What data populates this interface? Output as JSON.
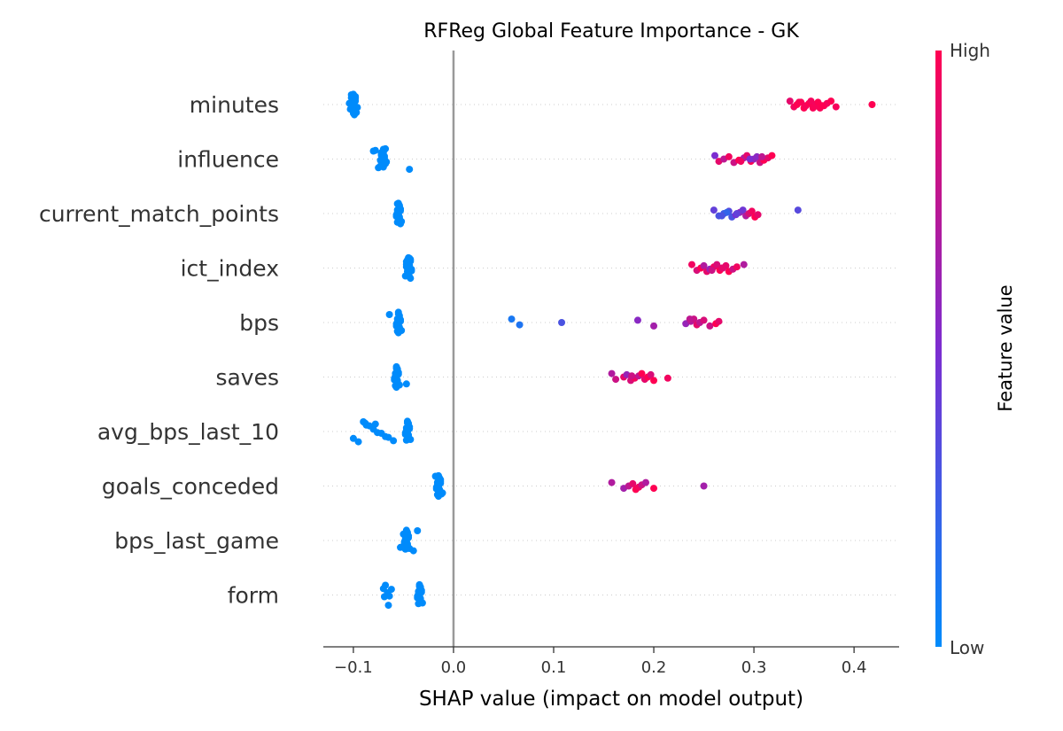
{
  "chart_data": {
    "type": "scatter",
    "title": "RFReg Global Feature Importance - GK",
    "xlabel": "SHAP value (impact on model output)",
    "xlim": [
      -0.13,
      0.445
    ],
    "xticks": [
      -0.1,
      0.0,
      0.1,
      0.2,
      0.3,
      0.4
    ],
    "xtick_labels": [
      "−0.1",
      "0.0",
      "0.1",
      "0.2",
      "0.3",
      "0.4"
    ],
    "features": [
      {
        "name": "minutes",
        "low": [
          -0.1,
          -0.102,
          -0.098,
          -0.101,
          -0.099,
          -0.1,
          -0.103,
          -0.097,
          -0.1,
          -0.101,
          -0.098,
          -0.099,
          -0.104,
          -0.1,
          -0.096,
          -0.101,
          -0.1,
          -0.099,
          -0.102,
          -0.098
        ],
        "high": [
          [
            0.336,
            0.9
          ],
          [
            0.34,
            0.95
          ],
          [
            0.343,
            1.0
          ],
          [
            0.347,
            0.98
          ],
          [
            0.35,
            1.0
          ],
          [
            0.352,
            0.97
          ],
          [
            0.355,
            1.0
          ],
          [
            0.357,
            0.96
          ],
          [
            0.36,
            1.0
          ],
          [
            0.362,
            0.95
          ],
          [
            0.364,
            1.0
          ],
          [
            0.366,
            0.98
          ],
          [
            0.37,
            1.0
          ],
          [
            0.373,
            0.96
          ],
          [
            0.377,
            1.0
          ],
          [
            0.382,
            0.97
          ],
          [
            0.418,
            1.0
          ],
          [
            0.345,
            0.99
          ],
          [
            0.359,
            0.98
          ],
          [
            0.368,
            1.0
          ]
        ]
      },
      {
        "name": "influence",
        "low": [
          -0.068,
          -0.07,
          -0.072,
          -0.069,
          -0.071,
          -0.073,
          -0.068,
          -0.07,
          -0.075,
          -0.078,
          -0.08,
          -0.072,
          -0.069,
          -0.071,
          -0.067,
          -0.07,
          -0.073,
          -0.044,
          -0.07,
          -0.072
        ],
        "high": [
          [
            0.261,
            0.5
          ],
          [
            0.265,
            0.9
          ],
          [
            0.27,
            0.75
          ],
          [
            0.275,
            0.95
          ],
          [
            0.28,
            0.8
          ],
          [
            0.285,
            1.0
          ],
          [
            0.29,
            0.7
          ],
          [
            0.293,
            0.9
          ],
          [
            0.297,
            1.0
          ],
          [
            0.3,
            0.6
          ],
          [
            0.303,
            0.55
          ],
          [
            0.306,
            0.8
          ],
          [
            0.31,
            1.0
          ],
          [
            0.314,
            0.9
          ],
          [
            0.318,
            1.0
          ],
          [
            0.287,
            0.95
          ],
          [
            0.296,
            0.5
          ],
          [
            0.308,
            0.75
          ]
        ]
      },
      {
        "name": "current_match_points",
        "low": [
          -0.055,
          -0.054,
          -0.056,
          -0.053,
          -0.055,
          -0.057,
          -0.054,
          -0.052,
          -0.056,
          -0.055,
          -0.054,
          -0.053,
          -0.056,
          -0.055,
          -0.057,
          -0.054,
          -0.055,
          -0.053,
          -0.056,
          -0.054
        ],
        "high": [
          [
            0.26,
            0.4
          ],
          [
            0.265,
            0.3
          ],
          [
            0.27,
            0.25
          ],
          [
            0.275,
            0.35
          ],
          [
            0.278,
            0.3
          ],
          [
            0.282,
            0.5
          ],
          [
            0.286,
            0.6
          ],
          [
            0.289,
            0.45
          ],
          [
            0.292,
            0.7
          ],
          [
            0.295,
            0.85
          ],
          [
            0.298,
            0.95
          ],
          [
            0.301,
            1.0
          ],
          [
            0.304,
            0.9
          ],
          [
            0.273,
            0.2
          ],
          [
            0.344,
            0.35
          ],
          [
            0.268,
            0.3
          ],
          [
            0.283,
            0.4
          ]
        ]
      },
      {
        "name": "ict_index",
        "low": [
          -0.045,
          -0.043,
          -0.047,
          -0.044,
          -0.046,
          -0.042,
          -0.045,
          -0.048,
          -0.044,
          -0.043,
          -0.046,
          -0.045,
          -0.047,
          -0.044,
          -0.042,
          -0.046,
          -0.045,
          -0.043,
          -0.044,
          -0.047
        ],
        "high": [
          [
            0.238,
            0.95
          ],
          [
            0.243,
            0.85
          ],
          [
            0.247,
            1.0
          ],
          [
            0.25,
            0.7
          ],
          [
            0.253,
            0.9
          ],
          [
            0.256,
            0.6
          ],
          [
            0.26,
            0.95
          ],
          [
            0.263,
            0.85
          ],
          [
            0.266,
            1.0
          ],
          [
            0.269,
            0.75
          ],
          [
            0.272,
            0.9
          ],
          [
            0.275,
            1.0
          ],
          [
            0.279,
            0.8
          ],
          [
            0.283,
            0.95
          ],
          [
            0.29,
            0.7
          ],
          [
            0.258,
            0.8
          ],
          [
            0.268,
            0.9
          ]
        ]
      },
      {
        "name": "bps",
        "low": [
          -0.055,
          -0.054,
          -0.056,
          -0.053,
          -0.055,
          -0.057,
          -0.054,
          -0.052,
          -0.056,
          -0.055,
          -0.064,
          -0.054,
          -0.053,
          -0.056,
          -0.055,
          -0.057,
          -0.054,
          -0.055
        ],
        "high": [
          [
            0.058,
            0.1
          ],
          [
            0.066,
            0.12
          ],
          [
            0.108,
            0.3
          ],
          [
            0.184,
            0.55
          ],
          [
            0.2,
            0.65
          ],
          [
            0.232,
            0.6
          ],
          [
            0.237,
            0.7
          ],
          [
            0.24,
            0.8
          ],
          [
            0.243,
            0.9
          ],
          [
            0.246,
            0.75
          ],
          [
            0.25,
            0.85
          ],
          [
            0.256,
            0.8
          ],
          [
            0.262,
            1.0
          ],
          [
            0.265,
            0.9
          ],
          [
            0.236,
            0.75
          ]
        ]
      },
      {
        "name": "saves",
        "low": [
          -0.057,
          -0.056,
          -0.058,
          -0.055,
          -0.057,
          -0.059,
          -0.056,
          -0.054,
          -0.058,
          -0.057,
          -0.056,
          -0.055,
          -0.058,
          -0.057,
          -0.059,
          -0.056,
          -0.047,
          -0.057
        ],
        "high": [
          [
            0.158,
            0.7
          ],
          [
            0.162,
            0.8
          ],
          [
            0.17,
            0.9
          ],
          [
            0.173,
            0.6
          ],
          [
            0.177,
            0.85
          ],
          [
            0.181,
            0.95
          ],
          [
            0.185,
            0.75
          ],
          [
            0.188,
            1.0
          ],
          [
            0.191,
            0.9
          ],
          [
            0.194,
            1.0
          ],
          [
            0.197,
            0.85
          ],
          [
            0.2,
            1.0
          ],
          [
            0.214,
            0.95
          ],
          [
            0.178,
            0.8
          ]
        ]
      },
      {
        "name": "avg_bps_last_10",
        "low": [
          -0.046,
          -0.045,
          -0.047,
          -0.044,
          -0.046,
          -0.048,
          -0.045,
          -0.043,
          -0.047,
          -0.046,
          -0.045,
          -0.044,
          -0.047,
          -0.046,
          -0.048,
          -0.045,
          -0.1,
          -0.095,
          -0.09,
          -0.087,
          -0.084,
          -0.08,
          -0.076,
          -0.072,
          -0.068,
          -0.065,
          -0.06,
          -0.088,
          -0.078
        ],
        "high": []
      },
      {
        "name": "goals_conceded",
        "low": [
          -0.015,
          -0.014,
          -0.016,
          -0.013,
          -0.015,
          -0.017,
          -0.014,
          -0.012,
          -0.016,
          -0.015,
          -0.014,
          -0.013,
          -0.016,
          -0.015,
          -0.017,
          -0.014,
          -0.011,
          -0.015,
          -0.018,
          -0.013
        ],
        "high": [
          [
            0.158,
            0.7
          ],
          [
            0.17,
            0.65
          ],
          [
            0.175,
            0.75
          ],
          [
            0.179,
            0.9
          ],
          [
            0.182,
            1.0
          ],
          [
            0.185,
            0.95
          ],
          [
            0.188,
            0.8
          ],
          [
            0.192,
            0.7
          ],
          [
            0.2,
            1.0
          ],
          [
            0.25,
            0.65
          ]
        ]
      },
      {
        "name": "bps_last_game",
        "low": [
          -0.047,
          -0.046,
          -0.048,
          -0.045,
          -0.047,
          -0.049,
          -0.046,
          -0.044,
          -0.048,
          -0.047,
          -0.046,
          -0.045,
          -0.048,
          -0.047,
          -0.049,
          -0.046,
          -0.053,
          -0.04,
          -0.036,
          -0.05
        ],
        "high": []
      },
      {
        "name": "form",
        "low": [
          -0.034,
          -0.033,
          -0.035,
          -0.032,
          -0.034,
          -0.036,
          -0.033,
          -0.031,
          -0.035,
          -0.034,
          -0.033,
          -0.032,
          -0.035,
          -0.034,
          -0.036,
          -0.033,
          -0.034,
          -0.065,
          -0.068,
          -0.07,
          -0.062,
          -0.066,
          -0.064,
          -0.069
        ],
        "high": []
      }
    ],
    "colorbar": {
      "high_label": "High",
      "low_label": "Low",
      "title": "Feature value"
    },
    "colors": {
      "low": "#008bfb",
      "high": "#ff0052",
      "zero_line": "#999999",
      "row_grid": "#cccccc",
      "axis": "#333333"
    },
    "grid": "row-dotted",
    "legend": "colorbar-right"
  }
}
